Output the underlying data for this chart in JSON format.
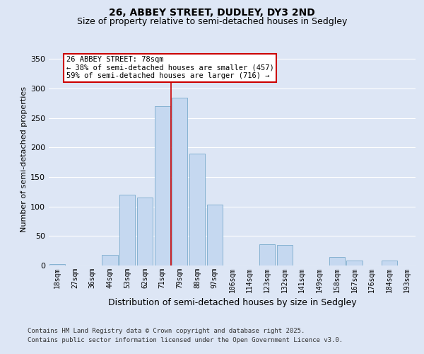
{
  "title1": "26, ABBEY STREET, DUDLEY, DY3 2ND",
  "title2": "Size of property relative to semi-detached houses in Sedgley",
  "xlabel": "Distribution of semi-detached houses by size in Sedgley",
  "ylabel": "Number of semi-detached properties",
  "categories": [
    "18sqm",
    "27sqm",
    "36sqm",
    "44sqm",
    "53sqm",
    "62sqm",
    "71sqm",
    "79sqm",
    "88sqm",
    "97sqm",
    "106sqm",
    "114sqm",
    "123sqm",
    "132sqm",
    "141sqm",
    "149sqm",
    "158sqm",
    "167sqm",
    "176sqm",
    "184sqm",
    "193sqm"
  ],
  "values": [
    2,
    0,
    0,
    18,
    120,
    115,
    270,
    285,
    190,
    103,
    0,
    0,
    36,
    35,
    0,
    0,
    15,
    8,
    0,
    8,
    0
  ],
  "bar_color": "#c5d8f0",
  "bar_edge_color": "#7aabcc",
  "vline_index": 7,
  "vline_color": "#cc0000",
  "vline_label": "26 ABBEY STREET: 78sqm",
  "annotation_smaller": "← 38% of semi-detached houses are smaller (457)",
  "annotation_larger": "59% of semi-detached houses are larger (716) →",
  "annotation_box_facecolor": "#ffffff",
  "annotation_box_edgecolor": "#cc0000",
  "ylim": [
    0,
    360
  ],
  "yticks": [
    0,
    50,
    100,
    150,
    200,
    250,
    300,
    350
  ],
  "footer1": "Contains HM Land Registry data © Crown copyright and database right 2025.",
  "footer2": "Contains public sector information licensed under the Open Government Licence v3.0.",
  "bg_color": "#dde6f5",
  "grid_color": "#ffffff",
  "title1_fontsize": 10,
  "title2_fontsize": 9,
  "ylabel_fontsize": 8,
  "xlabel_fontsize": 9,
  "ytick_fontsize": 8,
  "xtick_fontsize": 7,
  "ann_fontsize": 7.5,
  "footer_fontsize": 6.5
}
